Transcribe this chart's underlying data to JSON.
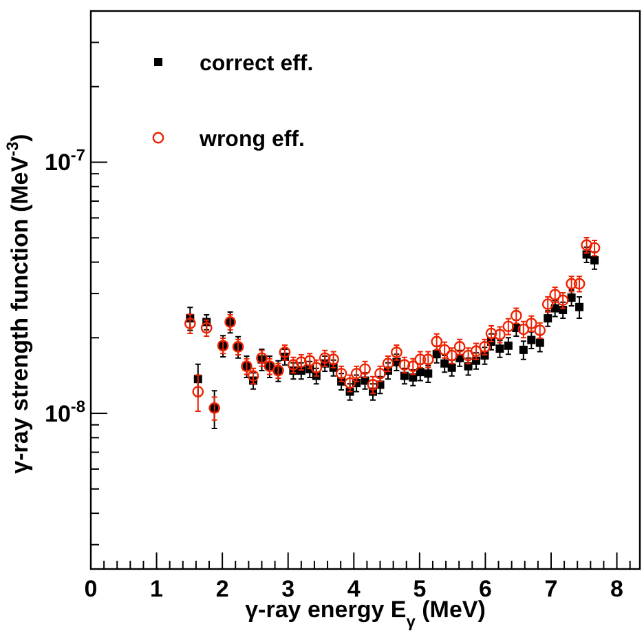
{
  "chart_data": {
    "type": "scatter",
    "xlabel": "γ-ray energy E$_{γ}$ (MeV)",
    "ylabel": "γ-ray strength function (MeV$^{-3}$)",
    "log": "y",
    "legend": "top left",
    "grid": false,
    "xlim": [
      0,
      8.35
    ],
    "xticks": [
      0,
      {
        "value": 0.2,
        "label": null
      },
      {
        "value": 0.4,
        "label": null
      },
      {
        "value": 0.6,
        "label": null
      },
      {
        "value": 0.8,
        "label": null
      },
      1,
      {
        "value": 1.2,
        "label": null
      },
      {
        "value": 1.4,
        "label": null
      },
      {
        "value": 1.6,
        "label": null
      },
      {
        "value": 1.8,
        "label": null
      },
      2,
      {
        "value": 2.2,
        "label": null
      },
      {
        "value": 2.4,
        "label": null
      },
      {
        "value": 2.6,
        "label": null
      },
      {
        "value": 2.8,
        "label": null
      },
      3,
      {
        "value": 3.2,
        "label": null
      },
      {
        "value": 3.4,
        "label": null
      },
      {
        "value": 3.6,
        "label": null
      },
      {
        "value": 3.8,
        "label": null
      },
      4,
      {
        "value": 4.2,
        "label": null
      },
      {
        "value": 4.4,
        "label": null
      },
      {
        "value": 4.6,
        "label": null
      },
      {
        "value": 4.8,
        "label": null
      },
      5,
      {
        "value": 5.2,
        "label": null
      },
      {
        "value": 5.4,
        "label": null
      },
      {
        "value": 5.6,
        "label": null
      },
      {
        "value": 5.8,
        "label": null
      },
      6,
      {
        "value": 6.2,
        "label": null
      },
      {
        "value": 6.4,
        "label": null
      },
      {
        "value": 6.6,
        "label": null
      },
      {
        "value": 6.8,
        "label": null
      },
      7,
      {
        "value": 7.2,
        "label": null
      },
      {
        "value": 7.4,
        "label": null
      },
      {
        "value": 7.6,
        "label": null
      },
      {
        "value": 7.8,
        "label": null
      },
      8,
      {
        "value": 8.2,
        "label": null
      }
    ],
    "ylim": [
      2.4e-09,
      4e-07
    ],
    "yticks": [
      {
        "value": 3e-09,
        "label": null
      },
      {
        "value": 4e-09,
        "label": null
      },
      {
        "value": 5e-09,
        "label": null
      },
      {
        "value": 6e-09,
        "label": null
      },
      {
        "value": 7e-09,
        "label": null
      },
      {
        "value": 8e-09,
        "label": null
      },
      {
        "value": 9e-09,
        "label": null
      },
      {
        "value": 1e-08,
        "label": "10$^{-8}$"
      },
      {
        "value": 2e-08,
        "label": null
      },
      {
        "value": 3e-08,
        "label": null
      },
      {
        "value": 4e-08,
        "label": null
      },
      {
        "value": 5e-08,
        "label": null
      },
      {
        "value": 6e-08,
        "label": null
      },
      {
        "value": 7e-08,
        "label": null
      },
      {
        "value": 8e-08,
        "label": null
      },
      {
        "value": 9e-08,
        "label": null
      },
      {
        "value": 1e-07,
        "label": "10$^{-7}$"
      },
      {
        "value": 2e-07,
        "label": null
      },
      {
        "value": 3e-07,
        "label": null
      }
    ],
    "x": [
      1.51,
      1.63,
      1.76,
      1.88,
      2.01,
      2.12,
      2.24,
      2.37,
      2.47,
      2.6,
      2.72,
      2.85,
      2.95,
      3.08,
      3.2,
      3.33,
      3.43,
      3.56,
      3.69,
      3.81,
      3.94,
      4.04,
      4.17,
      4.29,
      4.4,
      4.52,
      4.65,
      4.77,
      4.9,
      5.01,
      5.13,
      5.26,
      5.38,
      5.49,
      5.61,
      5.74,
      5.86,
      5.99,
      6.09,
      6.22,
      6.35,
      6.47,
      6.58,
      6.7,
      6.83,
      6.95,
      7.06,
      7.18,
      7.31,
      7.43,
      7.54,
      7.66
    ],
    "series": [
      {
        "name": "correct eff.",
        "color": "#000000",
        "marker": "square",
        "values": [
          2.39e-08,
          1.37e-08,
          2.31e-08,
          1.05e-08,
          1.86e-08,
          2.31e-08,
          1.84e-08,
          1.54e-08,
          1.35e-08,
          1.64e-08,
          1.54e-08,
          1.48e-08,
          1.68e-08,
          1.48e-08,
          1.48e-08,
          1.5e-08,
          1.41e-08,
          1.58e-08,
          1.52e-08,
          1.34e-08,
          1.22e-08,
          1.32e-08,
          1.35e-08,
          1.22e-08,
          1.3e-08,
          1.48e-08,
          1.6e-08,
          1.41e-08,
          1.39e-08,
          1.46e-08,
          1.44e-08,
          1.72e-08,
          1.58e-08,
          1.52e-08,
          1.66e-08,
          1.54e-08,
          1.62e-08,
          1.7e-08,
          1.93e-08,
          1.81e-08,
          1.86e-08,
          2.19e-08,
          1.79e-08,
          1.96e-08,
          1.91e-08,
          2.39e-08,
          2.62e-08,
          2.58e-08,
          2.89e-08,
          2.65e-08,
          4.29e-08,
          4.07e-08
        ],
        "errors": [
          2.5e-09,
          2e-09,
          1.6e-09,
          1.8e-09,
          1.8e-09,
          2.2e-09,
          1.8e-09,
          1.5e-09,
          1e-09,
          1.6e-09,
          1.5e-09,
          1.4e-09,
          1.2e-09,
          1.1e-09,
          1.1e-09,
          1.1e-09,
          1e-09,
          1.1e-09,
          1.1e-09,
          1e-09,
          9e-10,
          1e-09,
          1e-09,
          9e-10,
          1e-09,
          1.1e-09,
          1.2e-09,
          1e-09,
          1e-09,
          1.1e-09,
          1.1e-09,
          1.3e-09,
          1.2e-09,
          1.1e-09,
          1.2e-09,
          1.2e-09,
          1.2e-09,
          1.3e-09,
          1.4e-09,
          1.4e-09,
          1.4e-09,
          1.6e-09,
          1.5e-09,
          1.5e-09,
          1.5e-09,
          1.7e-09,
          1.9e-09,
          1.9e-09,
          2.1e-09,
          2.6e-09,
          3e-09,
          3.2e-09
        ]
      },
      {
        "name": "wrong eff.",
        "color": "#ee2200",
        "marker": "circle",
        "values": [
          2.28e-08,
          1.22e-08,
          2.19e-08,
          1.05e-08,
          1.86e-08,
          2.31e-08,
          1.84e-08,
          1.54e-08,
          1.41e-08,
          1.66e-08,
          1.54e-08,
          1.48e-08,
          1.75e-08,
          1.56e-08,
          1.6e-08,
          1.62e-08,
          1.52e-08,
          1.66e-08,
          1.64e-08,
          1.44e-08,
          1.32e-08,
          1.44e-08,
          1.5e-08,
          1.3e-08,
          1.44e-08,
          1.58e-08,
          1.75e-08,
          1.56e-08,
          1.54e-08,
          1.64e-08,
          1.64e-08,
          1.93e-08,
          1.79e-08,
          1.7e-08,
          1.84e-08,
          1.7e-08,
          1.77e-08,
          1.84e-08,
          2.08e-08,
          2.06e-08,
          2.22e-08,
          2.45e-08,
          2.16e-08,
          2.28e-08,
          2.14e-08,
          2.72e-08,
          2.97e-08,
          2.82e-08,
          3.28e-08,
          3.28e-08,
          4.68e-08,
          4.56e-08
        ],
        "errors": [
          2e-09,
          2e-09,
          1.6e-09,
          1.1e-09,
          1.3e-09,
          1.6e-09,
          1.3e-09,
          1.1e-09,
          1e-09,
          1.2e-09,
          1.1e-09,
          1e-09,
          1.2e-09,
          1.1e-09,
          1.1e-09,
          1.1e-09,
          1.1e-09,
          1.2e-09,
          1.2e-09,
          1e-09,
          1e-09,
          1e-09,
          1.1e-09,
          1e-09,
          1e-09,
          1.1e-09,
          1.2e-09,
          1.1e-09,
          1.1e-09,
          1.2e-09,
          1.2e-09,
          1.4e-09,
          1.3e-09,
          1.2e-09,
          1.3e-09,
          1.2e-09,
          1.3e-09,
          1.3e-09,
          1.5e-09,
          1.5e-09,
          1.6e-09,
          1.7e-09,
          1.6e-09,
          1.6e-09,
          1.5e-09,
          1.9e-09,
          2.1e-09,
          2e-09,
          2.3e-09,
          2.3e-09,
          3.3e-09,
          3.2e-09
        ]
      }
    ]
  }
}
